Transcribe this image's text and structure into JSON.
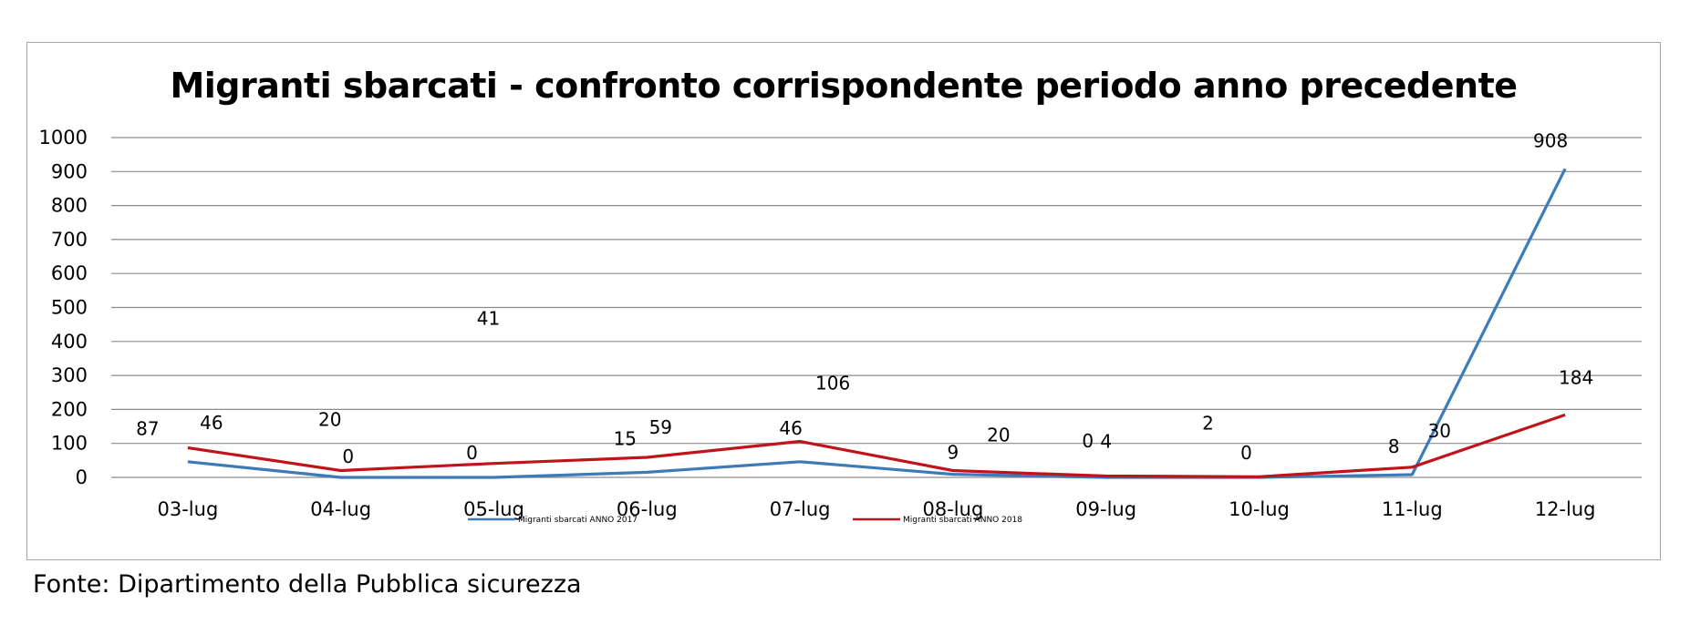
{
  "source": "Fonte: Dipartimento della Pubblica sicurezza",
  "chart_data": {
    "type": "line",
    "title": "Migranti sbarcati - confronto corrispondente periodo anno precedente",
    "xlabel": "",
    "ylabel": "",
    "ylim": [
      0,
      1000
    ],
    "yticks": [
      0,
      100,
      200,
      300,
      400,
      500,
      600,
      700,
      800,
      900,
      1000
    ],
    "grid": true,
    "legend_position": "bottom",
    "categories": [
      "03-lug",
      "04-lug",
      "05-lug",
      "06-lug",
      "07-lug",
      "08-lug",
      "09-lug",
      "10-lug",
      "11-lug",
      "12-lug"
    ],
    "series": [
      {
        "name": "Migranti sbarcati ANNO 2017",
        "color": "#3d7ab8",
        "values": [
          46,
          0,
          0,
          15,
          46,
          9,
          0,
          0,
          8,
          908
        ],
        "labels": [
          "46",
          "0",
          "0",
          "15",
          "46",
          "9",
          "0",
          "0",
          "8",
          "908"
        ]
      },
      {
        "name": "Migranti sbarcati ANNO 2018",
        "color": "#c0141b",
        "values": [
          87,
          20,
          41,
          59,
          106,
          20,
          4,
          2,
          30,
          184
        ],
        "labels": [
          "87",
          "20",
          "41",
          "59",
          "106",
          "20",
          "4",
          "2",
          "30",
          "184"
        ]
      }
    ]
  }
}
